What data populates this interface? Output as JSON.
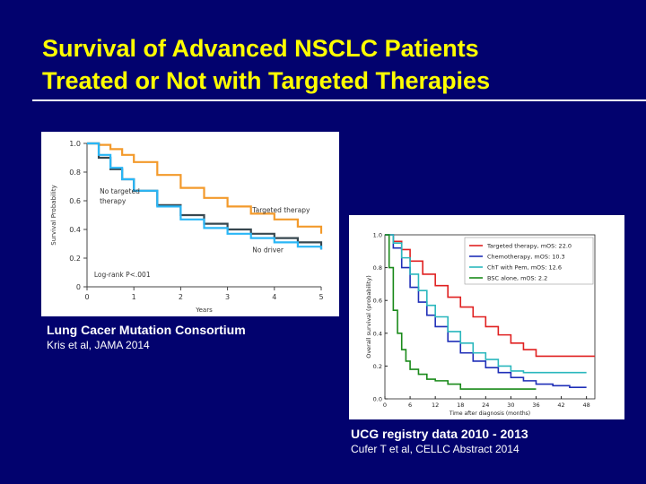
{
  "slide": {
    "title_line1": "Survival of Advanced NSCLC Patients",
    "title_line2": "Treated or Not with Targeted Therapies",
    "colors": {
      "background": "#02026e",
      "title": "#ffff00",
      "text": "#ffffff"
    }
  },
  "captions": {
    "left_main": "Lung Cacer Mutation Consortium",
    "left_sub": "Kris et al, JAMA 2014",
    "right_main": "UCG registry data 2010 - 2013",
    "right_sub": "Cufer T et al, CELLC Abstract 2014"
  },
  "chart_data": [
    {
      "type": "line",
      "xlabel": "Years",
      "ylabel": "Survival Probability",
      "xlim": [
        0,
        5
      ],
      "ylim": [
        0,
        1
      ],
      "xticks": [
        "0",
        "1",
        "2",
        "3",
        "4",
        "5"
      ],
      "yticks": [
        "0",
        "0.2",
        "0.4",
        "0.6",
        "0.8",
        "1.0"
      ],
      "annotation": "Log-rank P<.001",
      "grid": false,
      "series": [
        {
          "name": "Targeted therapy",
          "color": "#f39a2b",
          "x": [
            0,
            0.25,
            0.5,
            0.75,
            1.0,
            1.5,
            2.0,
            2.5,
            3.0,
            3.5,
            4.0,
            4.5,
            5.0
          ],
          "y": [
            1.0,
            0.99,
            0.96,
            0.92,
            0.87,
            0.78,
            0.69,
            0.62,
            0.56,
            0.51,
            0.47,
            0.42,
            0.37
          ]
        },
        {
          "name": "No targeted therapy",
          "color": "#37474f",
          "x": [
            0,
            0.25,
            0.5,
            0.75,
            1.0,
            1.5,
            2.0,
            2.5,
            3.0,
            3.5,
            4.0,
            4.5,
            5.0
          ],
          "y": [
            1.0,
            0.9,
            0.82,
            0.75,
            0.67,
            0.57,
            0.5,
            0.44,
            0.4,
            0.37,
            0.34,
            0.31,
            0.26
          ]
        },
        {
          "name": "No driver",
          "color": "#29b6f6",
          "x": [
            0,
            0.25,
            0.5,
            0.75,
            1.0,
            1.5,
            2.0,
            2.5,
            3.0,
            3.5,
            4.0,
            4.5,
            5.0
          ],
          "y": [
            1.0,
            0.92,
            0.83,
            0.75,
            0.67,
            0.56,
            0.47,
            0.41,
            0.37,
            0.34,
            0.31,
            0.28,
            0.26
          ]
        }
      ],
      "labels": {
        "no_targeted_line1": "No targeted",
        "no_targeted_line2": "therapy",
        "targeted": "Targeted therapy",
        "no_driver": "No driver"
      }
    },
    {
      "type": "line",
      "xlabel": "Time after diagnosis (months)",
      "ylabel": "Overall survival (probability)",
      "xlim": [
        0,
        50
      ],
      "ylim": [
        0,
        1
      ],
      "xticks": [
        "0",
        "6",
        "12",
        "18",
        "24",
        "30",
        "36",
        "42",
        "48"
      ],
      "yticks": [
        "0.0",
        "0.2",
        "0.4",
        "0.6",
        "0.8",
        "1.0"
      ],
      "legend_position": "top-right",
      "grid": false,
      "series": [
        {
          "name": "Targeted therapy, mOS: 22.0",
          "color": "#e02020",
          "x": [
            0,
            2,
            4,
            6,
            9,
            12,
            15,
            18,
            21,
            24,
            27,
            30,
            33,
            36,
            50
          ],
          "y": [
            1.0,
            0.96,
            0.91,
            0.84,
            0.76,
            0.69,
            0.62,
            0.56,
            0.5,
            0.44,
            0.39,
            0.34,
            0.3,
            0.26,
            0.26
          ]
        },
        {
          "name": "Chemotherapy, mOS: 10.3",
          "color": "#1f2fb8",
          "x": [
            0,
            2,
            4,
            6,
            8,
            10,
            12,
            15,
            18,
            21,
            24,
            27,
            30,
            33,
            36,
            40,
            44,
            48
          ],
          "y": [
            1.0,
            0.92,
            0.8,
            0.68,
            0.59,
            0.51,
            0.44,
            0.35,
            0.28,
            0.23,
            0.19,
            0.16,
            0.13,
            0.11,
            0.09,
            0.08,
            0.07,
            0.07
          ]
        },
        {
          "name": "ChT with Pem, mOS: 12.6",
          "color": "#2ab7bd",
          "x": [
            0,
            2,
            4,
            6,
            8,
            10,
            12,
            15,
            18,
            21,
            24,
            27,
            30,
            33,
            36,
            48
          ],
          "y": [
            1.0,
            0.95,
            0.86,
            0.76,
            0.66,
            0.57,
            0.5,
            0.41,
            0.34,
            0.28,
            0.24,
            0.2,
            0.17,
            0.16,
            0.16,
            0.16
          ]
        },
        {
          "name": "BSC alone, mOS: 2.2",
          "color": "#1a8a1a",
          "x": [
            0,
            1,
            2,
            3,
            4,
            5,
            6,
            8,
            10,
            12,
            15,
            18,
            21,
            27,
            36
          ],
          "y": [
            1.0,
            0.8,
            0.54,
            0.4,
            0.3,
            0.23,
            0.18,
            0.15,
            0.12,
            0.11,
            0.09,
            0.06,
            0.06,
            0.06,
            0.06
          ]
        }
      ]
    }
  ]
}
